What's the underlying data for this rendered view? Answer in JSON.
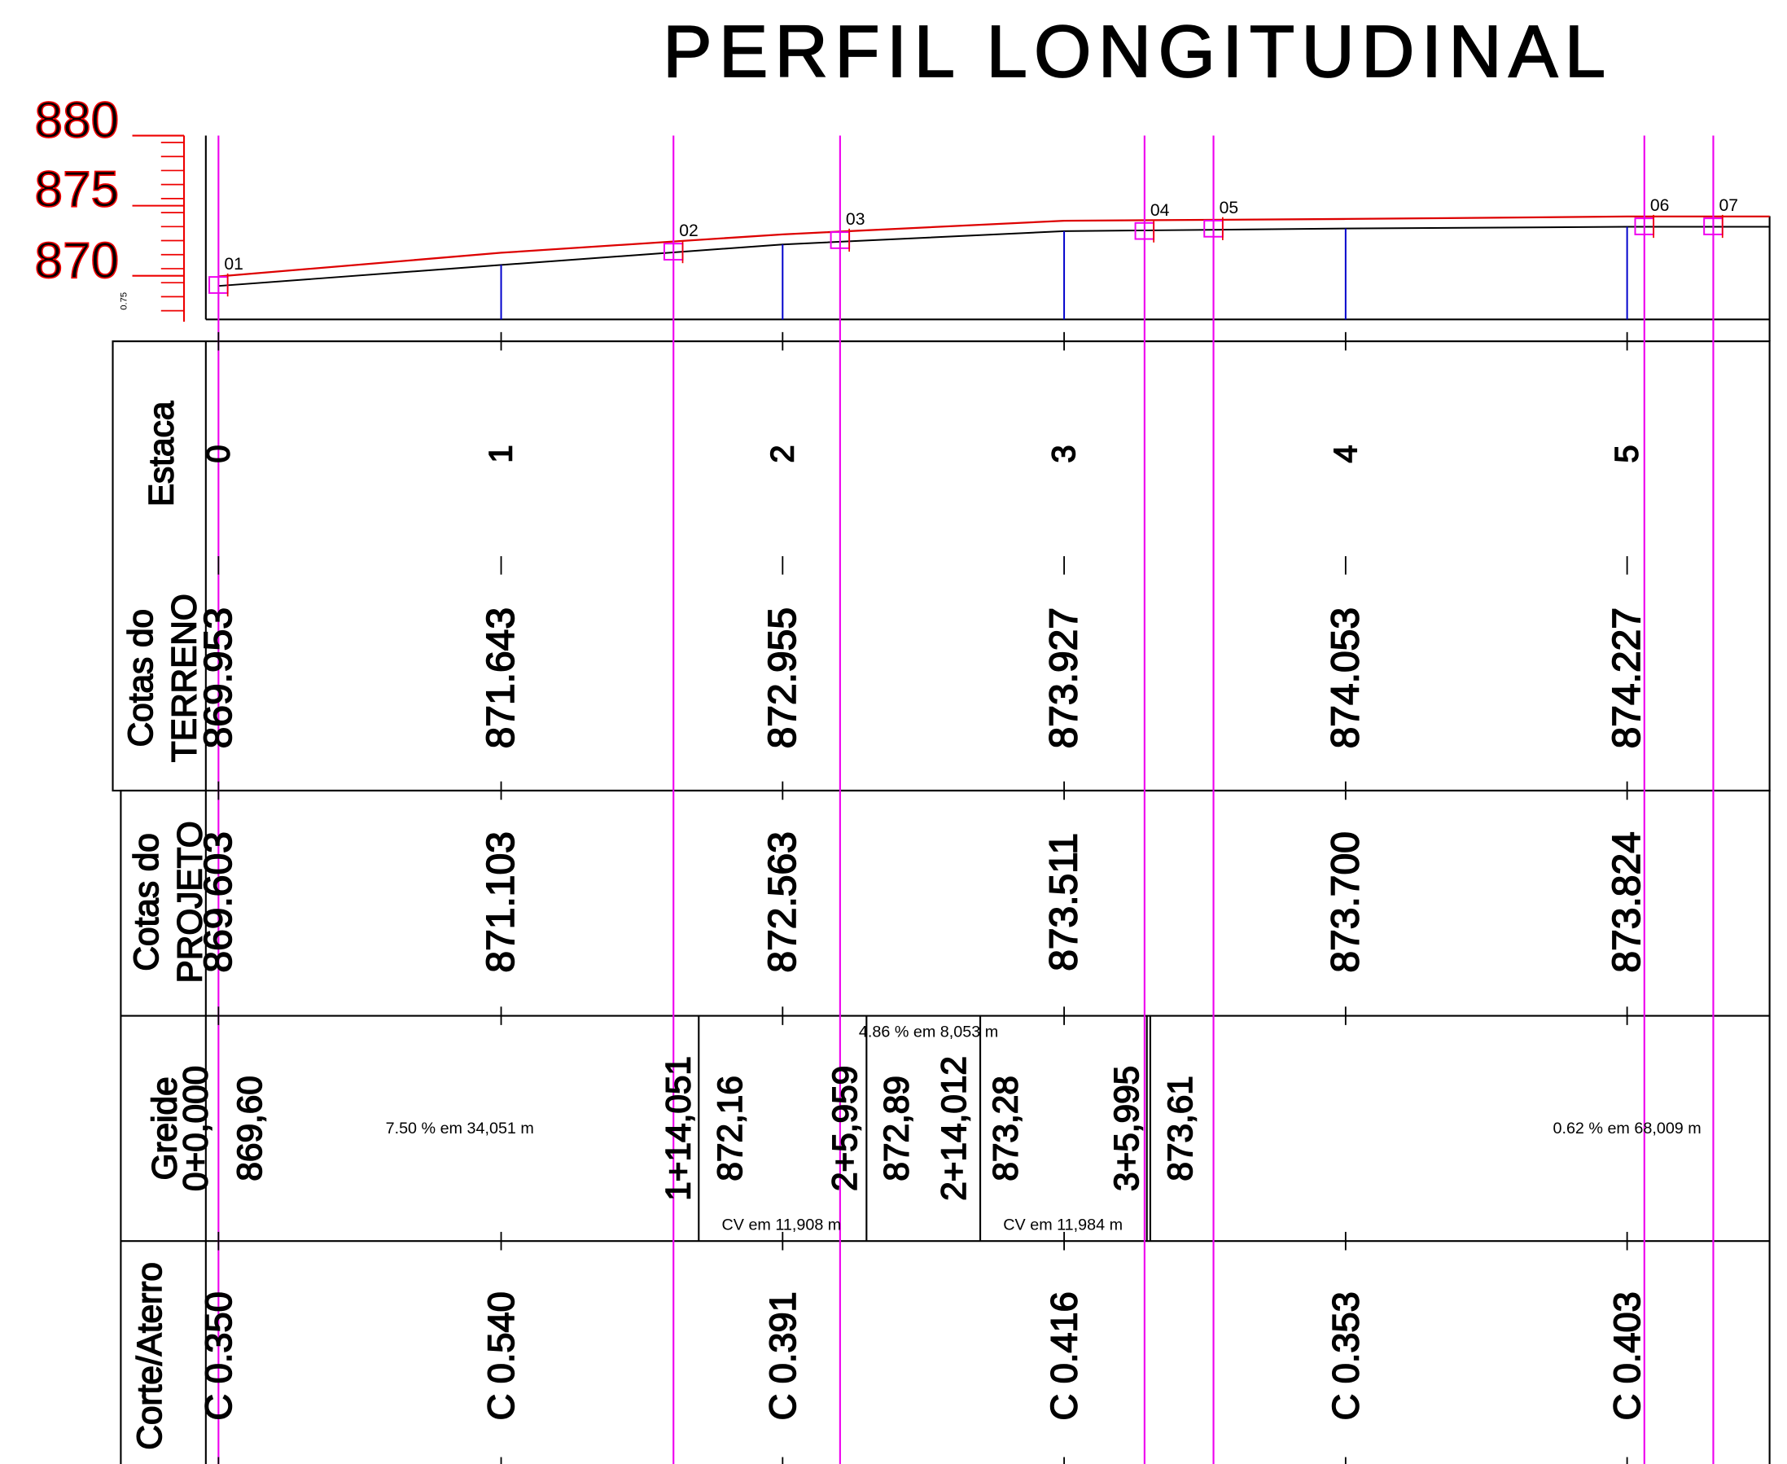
{
  "title": "PERFIL LONGITUDINAL",
  "elevation_scale": {
    "labels": [
      "880",
      "875",
      "870"
    ],
    "note": "0.75"
  },
  "points": [
    "01",
    "02",
    "03",
    "04",
    "05",
    "06",
    "07"
  ],
  "table": {
    "estaca": {
      "label": "Estaca",
      "values": [
        "0",
        "1",
        "2",
        "3",
        "4",
        "5"
      ]
    },
    "terreno": {
      "label": [
        "Cotas do",
        "TERRENO"
      ],
      "values": [
        "869.953",
        "871.643",
        "872.955",
        "873.927",
        "874.053",
        "874.227"
      ]
    },
    "projeto": {
      "label": [
        "Cotas do",
        "PROJETO"
      ],
      "values": [
        "869.603",
        "871.103",
        "872.563",
        "873.511",
        "873.700",
        "873.824"
      ]
    },
    "greide": {
      "label": "Greide",
      "items": [
        "0+0,000",
        "869,60",
        "7.50 % em 34,051 m",
        "1+14,051",
        "872,16",
        "2+5,959",
        "872,89",
        "2+14,012",
        "873,28",
        "3+5,995",
        "873,61",
        "4.86 % em 8,053 m",
        "CV em 11,908 m",
        "CV em 11,984 m",
        "0.62 % em 68,009 m"
      ]
    },
    "corte": {
      "label": "Corte/Aterro",
      "values": [
        "C 0.350",
        "C 0.540",
        "C 0.391",
        "C 0.416",
        "C 0.353",
        "C 0.403"
      ]
    }
  }
}
